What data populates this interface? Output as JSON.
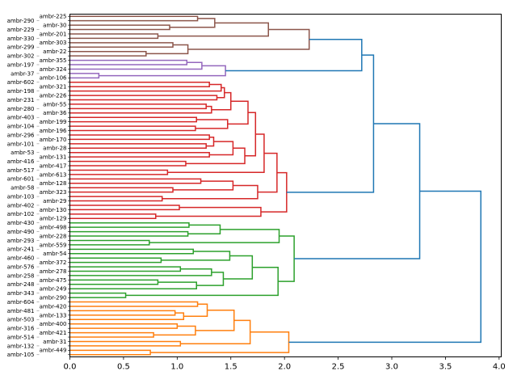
{
  "chart_data": {
    "type": "dendrogram",
    "orientation": "right",
    "title": "",
    "xlabel": "",
    "ylabel": "",
    "xlim": [
      0,
      4.02
    ],
    "xticks": [
      "0.0",
      "0.5",
      "1.0",
      "1.5",
      "2.0",
      "2.5",
      "3.0",
      "3.5",
      "4.0"
    ],
    "grid": false,
    "above_threshold_color": "#1f77b4",
    "tree": [
      3.83,
      [
        3.26,
        [
          2.83,
          [
            2.72,
            {
              "color": "#8c564b",
              "tree": [
                2.23,
                [
                  1.85,
                  [
                    1.35,
                    [
                      1.19,
                      "ambr-225",
                      "ambr-290"
                    ],
                    [
                      0.93,
                      "ambr-30",
                      "ambr-229"
                    ]
                  ],
                  [
                    0.82,
                    "ambr-201",
                    "ambr-330"
                  ]
                ],
                [
                  1.1,
                  [
                    0.96,
                    "ambr-303",
                    "ambr-299"
                  ],
                  [
                    0.71,
                    "ambr-22",
                    "ambr-302"
                  ]
                ]
              ]
            },
            {
              "color": "#9467bd",
              "tree": [
                1.45,
                [
                  1.23,
                  [
                    1.09,
                    "ambr-355",
                    "ambr-197"
                  ],
                  "ambr-324"
                ],
                [
                  0.27,
                  "ambr-37",
                  "ambr-106"
                ]
              ]
            }
          ],
          {
            "color": "#d62728",
            "tree": [
              2.02,
              [
                1.93,
                [
                  1.81,
                  [
                    1.73,
                    [
                      1.66,
                      [
                        1.5,
                        [
                          1.44,
                          [
                            1.41,
                            [
                              1.3,
                              "ambr-602",
                              "ambr-321"
                            ],
                            "ambr-198"
                          ],
                          [
                            1.37,
                            "ambr-226",
                            "ambr-231"
                          ]
                        ],
                        [
                          1.32,
                          [
                            1.27,
                            "ambr-55",
                            "ambr-280"
                          ],
                          "ambr-36"
                        ]
                      ],
                      [
                        1.47,
                        [
                          1.18,
                          "ambr-403",
                          "ambr-199"
                        ],
                        [
                          1.17,
                          "ambr-104",
                          "ambr-196"
                        ]
                      ]
                    ],
                    [
                      1.63,
                      [
                        1.52,
                        [
                          1.34,
                          [
                            1.3,
                            "ambr-296",
                            "ambr-170"
                          ],
                          [
                            1.27,
                            "ambr-101",
                            "ambr-28"
                          ]
                        ],
                        [
                          1.3,
                          "ambr-53",
                          "ambr-131"
                        ]
                      ],
                      [
                        1.08,
                        "ambr-416",
                        "ambr-417"
                      ]
                    ]
                  ],
                  [
                    0.91,
                    "ambr-517",
                    "ambr-613"
                  ]
                ],
                [
                  1.75,
                  [
                    1.52,
                    [
                      1.22,
                      "ambr-601",
                      "ambr-128"
                    ],
                    [
                      0.96,
                      "ambr-58",
                      "ambr-323"
                    ]
                  ],
                  [
                    0.86,
                    "ambr-103",
                    "ambr-29"
                  ]
                ]
              ],
              [
                1.78,
                [
                  1.02,
                  "ambr-402",
                  "ambr-130"
                ],
                [
                  0.8,
                  "ambr-102",
                  "ambr-129"
                ]
              ]
            ]
          }
        ],
        {
          "color": "#2ca02c",
          "tree": [
            2.09,
            [
              1.95,
              [
                1.4,
                [
                  1.11,
                  "ambr-430",
                  "ambr-498"
                ],
                [
                  1.1,
                  "ambr-490",
                  "ambr-228"
                ]
              ],
              [
                0.74,
                "ambr-293",
                "ambr-559"
              ]
            ],
            [
              1.94,
              [
                1.7,
                [
                  1.49,
                  [
                    1.15,
                    "ambr-241",
                    "ambr-54"
                  ],
                  [
                    0.85,
                    "ambr-460",
                    "ambr-372"
                  ]
                ],
                [
                  1.43,
                  [
                    1.32,
                    [
                      1.03,
                      "ambr-576",
                      "ambr-278"
                    ],
                    "ambr-258"
                  ],
                  [
                    1.18,
                    [
                      0.82,
                      "ambr-475",
                      "ambr-248"
                    ],
                    "ambr-249"
                  ]
                ]
              ],
              [
                0.52,
                "ambr-343",
                "ambr-290"
              ]
            ]
          ]
        }
      ],
      {
        "color": "#ff7f0e",
        "tree": [
          2.04,
          [
            1.68,
            [
              1.53,
              [
                1.28,
                [
                  1.19,
                  "ambr-604",
                  "ambr-420"
                ],
                [
                  1.06,
                  [
                    0.98,
                    "ambr-481",
                    "ambr-133"
                  ],
                  "ambr-503"
                ]
              ],
              [
                1.17,
                [
                  1.0,
                  "ambr-400",
                  "ambr-316"
                ],
                [
                  0.78,
                  "ambr-421",
                  "ambr-514"
                ]
              ]
            ],
            [
              1.03,
              "ambr-31",
              "ambr-132"
            ]
          ],
          [
            0.75,
            "ambr-449",
            "ambr-105"
          ]
        ]
      }
    ]
  }
}
